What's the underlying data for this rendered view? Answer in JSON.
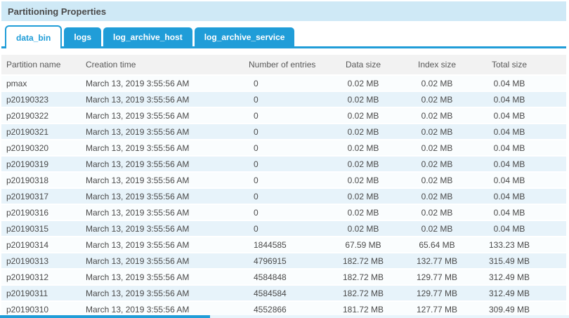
{
  "colors": {
    "accent": "#209dd8",
    "titlebar_bg": "#cfe9f6",
    "header_bg": "#f2f2f2",
    "row_odd": "#fafdfe",
    "row_even": "#e7f3fa"
  },
  "panel": {
    "title": "Partitioning Properties"
  },
  "tabs": [
    {
      "label": "data_bin",
      "active": true
    },
    {
      "label": "logs",
      "active": false
    },
    {
      "label": "log_archive_host",
      "active": false
    },
    {
      "label": "log_archive_service",
      "active": false
    }
  ],
  "table": {
    "columns": [
      "Partition name",
      "Creation time",
      "Number of entries",
      "Data size",
      "Index size",
      "Total size"
    ],
    "rows": [
      [
        "pmax",
        "March 13, 2019 3:55:56 AM",
        "0",
        "0.02 MB",
        "0.02 MB",
        "0.04 MB"
      ],
      [
        "p20190323",
        "March 13, 2019 3:55:56 AM",
        "0",
        "0.02 MB",
        "0.02 MB",
        "0.04 MB"
      ],
      [
        "p20190322",
        "March 13, 2019 3:55:56 AM",
        "0",
        "0.02 MB",
        "0.02 MB",
        "0.04 MB"
      ],
      [
        "p20190321",
        "March 13, 2019 3:55:56 AM",
        "0",
        "0.02 MB",
        "0.02 MB",
        "0.04 MB"
      ],
      [
        "p20190320",
        "March 13, 2019 3:55:56 AM",
        "0",
        "0.02 MB",
        "0.02 MB",
        "0.04 MB"
      ],
      [
        "p20190319",
        "March 13, 2019 3:55:56 AM",
        "0",
        "0.02 MB",
        "0.02 MB",
        "0.04 MB"
      ],
      [
        "p20190318",
        "March 13, 2019 3:55:56 AM",
        "0",
        "0.02 MB",
        "0.02 MB",
        "0.04 MB"
      ],
      [
        "p20190317",
        "March 13, 2019 3:55:56 AM",
        "0",
        "0.02 MB",
        "0.02 MB",
        "0.04 MB"
      ],
      [
        "p20190316",
        "March 13, 2019 3:55:56 AM",
        "0",
        "0.02 MB",
        "0.02 MB",
        "0.04 MB"
      ],
      [
        "p20190315",
        "March 13, 2019 3:55:56 AM",
        "0",
        "0.02 MB",
        "0.02 MB",
        "0.04 MB"
      ],
      [
        "p20190314",
        "March 13, 2019 3:55:56 AM",
        "1844585",
        "67.59 MB",
        "65.64 MB",
        "133.23 MB"
      ],
      [
        "p20190313",
        "March 13, 2019 3:55:56 AM",
        "4796915",
        "182.72 MB",
        "132.77 MB",
        "315.49 MB"
      ],
      [
        "p20190312",
        "March 13, 2019 3:55:56 AM",
        "4584848",
        "182.72 MB",
        "129.77 MB",
        "312.49 MB"
      ],
      [
        "p20190311",
        "March 13, 2019 3:55:56 AM",
        "4584584",
        "182.72 MB",
        "129.77 MB",
        "312.49 MB"
      ],
      [
        "p20190310",
        "March 13, 2019 3:55:56 AM",
        "4552866",
        "181.72 MB",
        "127.77 MB",
        "309.49 MB"
      ]
    ]
  }
}
